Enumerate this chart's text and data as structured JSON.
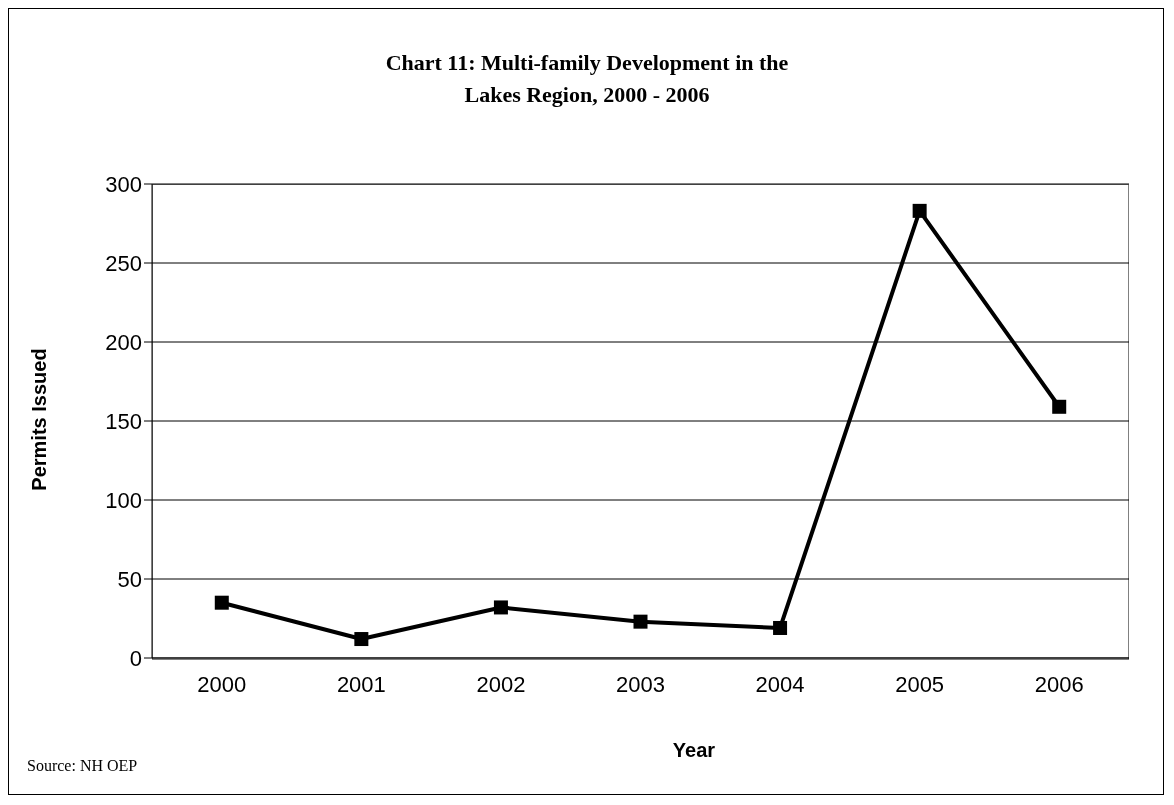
{
  "chart_data": {
    "type": "line",
    "title": "Chart 11: Multi-family Development in the Lakes Region, 2000 - 2006",
    "xlabel": "Year",
    "ylabel": "Permits Issued",
    "categories": [
      "2000",
      "2001",
      "2002",
      "2003",
      "2004",
      "2005",
      "2006"
    ],
    "series": [
      {
        "color": "#000000",
        "values": [
          35,
          12,
          32,
          23,
          19,
          283,
          159
        ]
      }
    ],
    "ylim": [
      0,
      300
    ],
    "yticks": [
      0,
      50,
      100,
      150,
      200,
      250,
      300
    ],
    "grid": "y",
    "legend": false,
    "marker": "square",
    "line_style": "solid",
    "annotations": [
      "Source: NH OEP"
    ]
  }
}
